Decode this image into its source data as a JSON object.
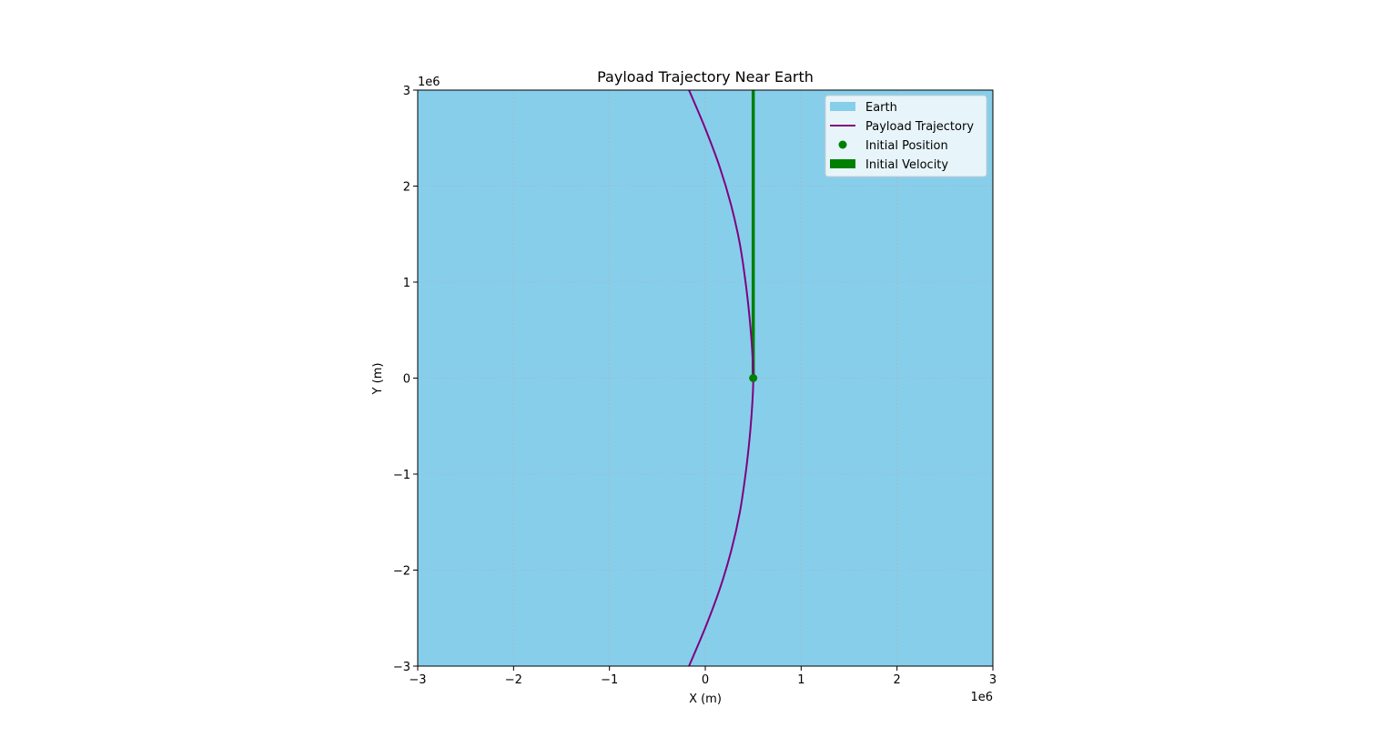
{
  "chart_data": {
    "type": "line",
    "title": "Payload Trajectory Near Earth",
    "xlabel": "X (m)",
    "ylabel": "Y (m)",
    "xlim": [
      -3000000,
      3000000
    ],
    "ylim": [
      -3000000,
      3000000
    ],
    "x_offset_label": "1e6",
    "y_offset_label": "1e6",
    "x_ticks": [
      -3,
      -2,
      -1,
      0,
      1,
      2,
      3
    ],
    "y_ticks": [
      -3,
      -2,
      -1,
      0,
      1,
      2,
      3
    ],
    "x_tick_labels": [
      "−3",
      "−2",
      "−1",
      "0",
      "1",
      "2",
      "3"
    ],
    "y_tick_labels": [
      "−3",
      "−2",
      "−1",
      "0",
      "1",
      "2",
      "3"
    ],
    "grid": true,
    "legend_position": "upper right",
    "earth": {
      "label": "Earth",
      "color": "#87ceeb",
      "fills_view": true
    },
    "series": [
      {
        "name": "Payload Trajectory",
        "color": "#800080",
        "x": [
          -170000,
          0,
          150000,
          270000,
          360000,
          420000,
          460000,
          485000,
          498000,
          500000,
          498000,
          485000,
          460000,
          420000,
          360000,
          270000,
          150000,
          0,
          -170000
        ],
        "y": [
          -3000000,
          -2600000,
          -2200000,
          -1800000,
          -1400000,
          -1000000,
          -650000,
          -350000,
          -120000,
          0,
          120000,
          350000,
          650000,
          1000000,
          1400000,
          1800000,
          2200000,
          2600000,
          3000000
        ]
      }
    ],
    "initial_position": {
      "label": "Initial Position",
      "x": 500000,
      "y": 0,
      "color": "#008000"
    },
    "initial_velocity": {
      "label": "Initial Velocity",
      "x": 500000,
      "y_start": 0,
      "y_end": 3000000,
      "color": "#008000"
    }
  }
}
